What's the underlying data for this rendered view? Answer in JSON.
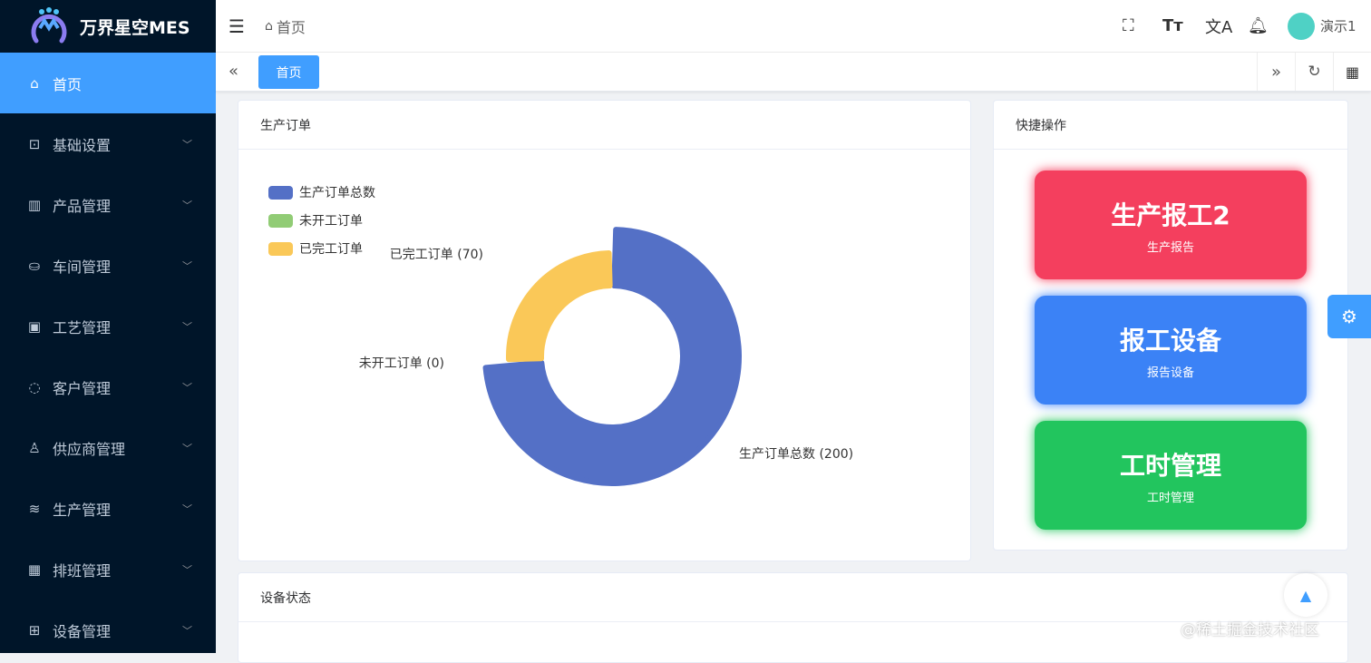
{
  "app": {
    "title": "万界星空MES"
  },
  "sidebar": {
    "items": [
      {
        "label": "首页",
        "icon": "home-icon",
        "active": true
      },
      {
        "label": "基础设置",
        "icon": "presentation-icon"
      },
      {
        "label": "产品管理",
        "icon": "bar-chart-icon"
      },
      {
        "label": "车间管理",
        "icon": "workshop-icon"
      },
      {
        "label": "工艺管理",
        "icon": "box-icon"
      },
      {
        "label": "客户管理",
        "icon": "chat-icon"
      },
      {
        "label": "供应商管理",
        "icon": "user-icon"
      },
      {
        "label": "生产管理",
        "icon": "database-icon"
      },
      {
        "label": "排班管理",
        "icon": "calendar-icon"
      },
      {
        "label": "设备管理",
        "icon": "cpu-icon"
      }
    ]
  },
  "header": {
    "breadcrumb": "首页",
    "user": "演示1"
  },
  "tabs": [
    {
      "label": "首页",
      "active": true
    }
  ],
  "order_card": {
    "title": "生产订单"
  },
  "quick_card": {
    "title": "快捷操作",
    "buttons": [
      {
        "title": "生产报工2",
        "sub": "生产报告",
        "color": "#f43f5e"
      },
      {
        "title": "报工设备",
        "sub": "报告设备",
        "color": "#3b82f6"
      },
      {
        "title": "工时管理",
        "sub": "工时管理",
        "color": "#22c55e"
      }
    ]
  },
  "device_card": {
    "title": "设备状态"
  },
  "watermark": "@稀土掘金技术社区",
  "chart_data": {
    "type": "pie",
    "variant": "rose-donut",
    "legend_position": "top-left",
    "series": [
      {
        "name": "生产订单总数",
        "value": 200,
        "color": "#5470c6",
        "label": "生产订单总数 (200)"
      },
      {
        "name": "未开工订单",
        "value": 0,
        "color": "#91cc75",
        "label": "未开工订单 (0)"
      },
      {
        "name": "已完工订单",
        "value": 70,
        "color": "#fac858",
        "label": "已完工订单 (70)"
      }
    ]
  }
}
